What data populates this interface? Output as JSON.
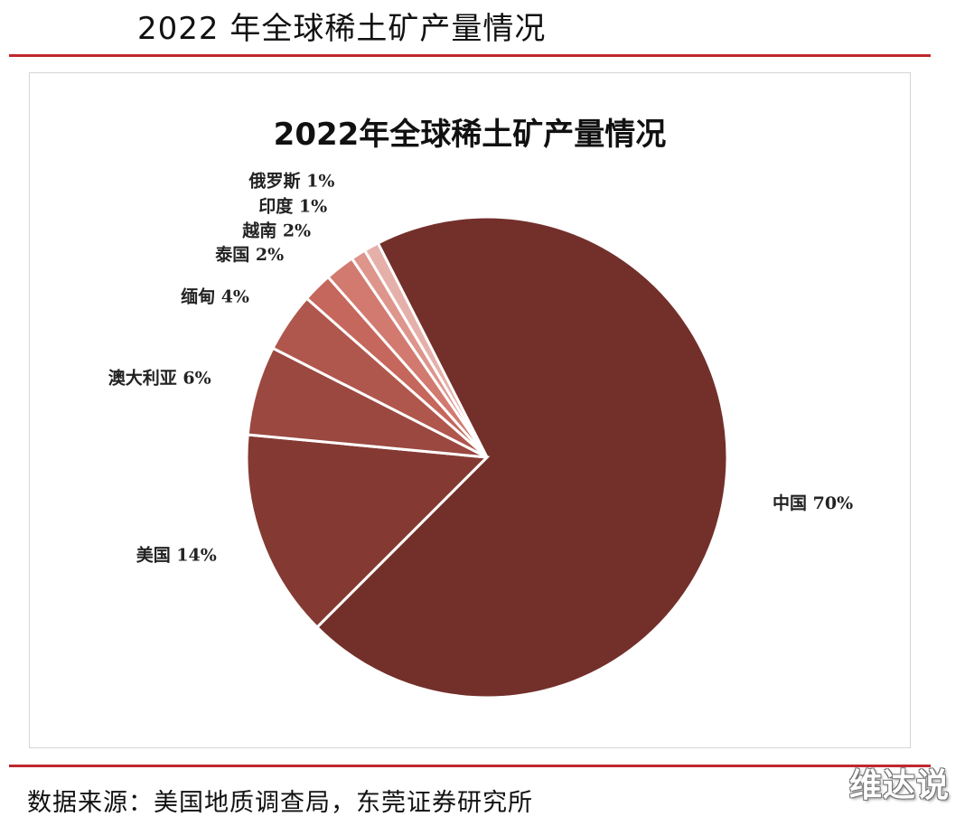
{
  "header": {
    "title": "2022 年全球稀土矿产量情况"
  },
  "footer": {
    "source": "数据来源：美国地质调查局，东莞证券研究所"
  },
  "watermark": "维达说",
  "chart_data": {
    "type": "pie",
    "title": "2022年全球稀土矿产量情况",
    "slices": [
      {
        "label": "中国 70%",
        "value": 70,
        "color": "#73302b"
      },
      {
        "label": "美国 14%",
        "value": 14,
        "color": "#843a33"
      },
      {
        "label": "澳大利亚 6%",
        "value": 6,
        "color": "#9a4840"
      },
      {
        "label": "缅甸 4%",
        "value": 4,
        "color": "#b0574d"
      },
      {
        "label": "泰国 2%",
        "value": 2,
        "color": "#c5675c"
      },
      {
        "label": "越南 2%",
        "value": 2,
        "color": "#d27a70"
      },
      {
        "label": "印度 1%",
        "value": 1,
        "color": "#dd958c"
      },
      {
        "label": "俄罗斯 1%",
        "value": 1,
        "color": "#e6b0aa"
      }
    ]
  }
}
